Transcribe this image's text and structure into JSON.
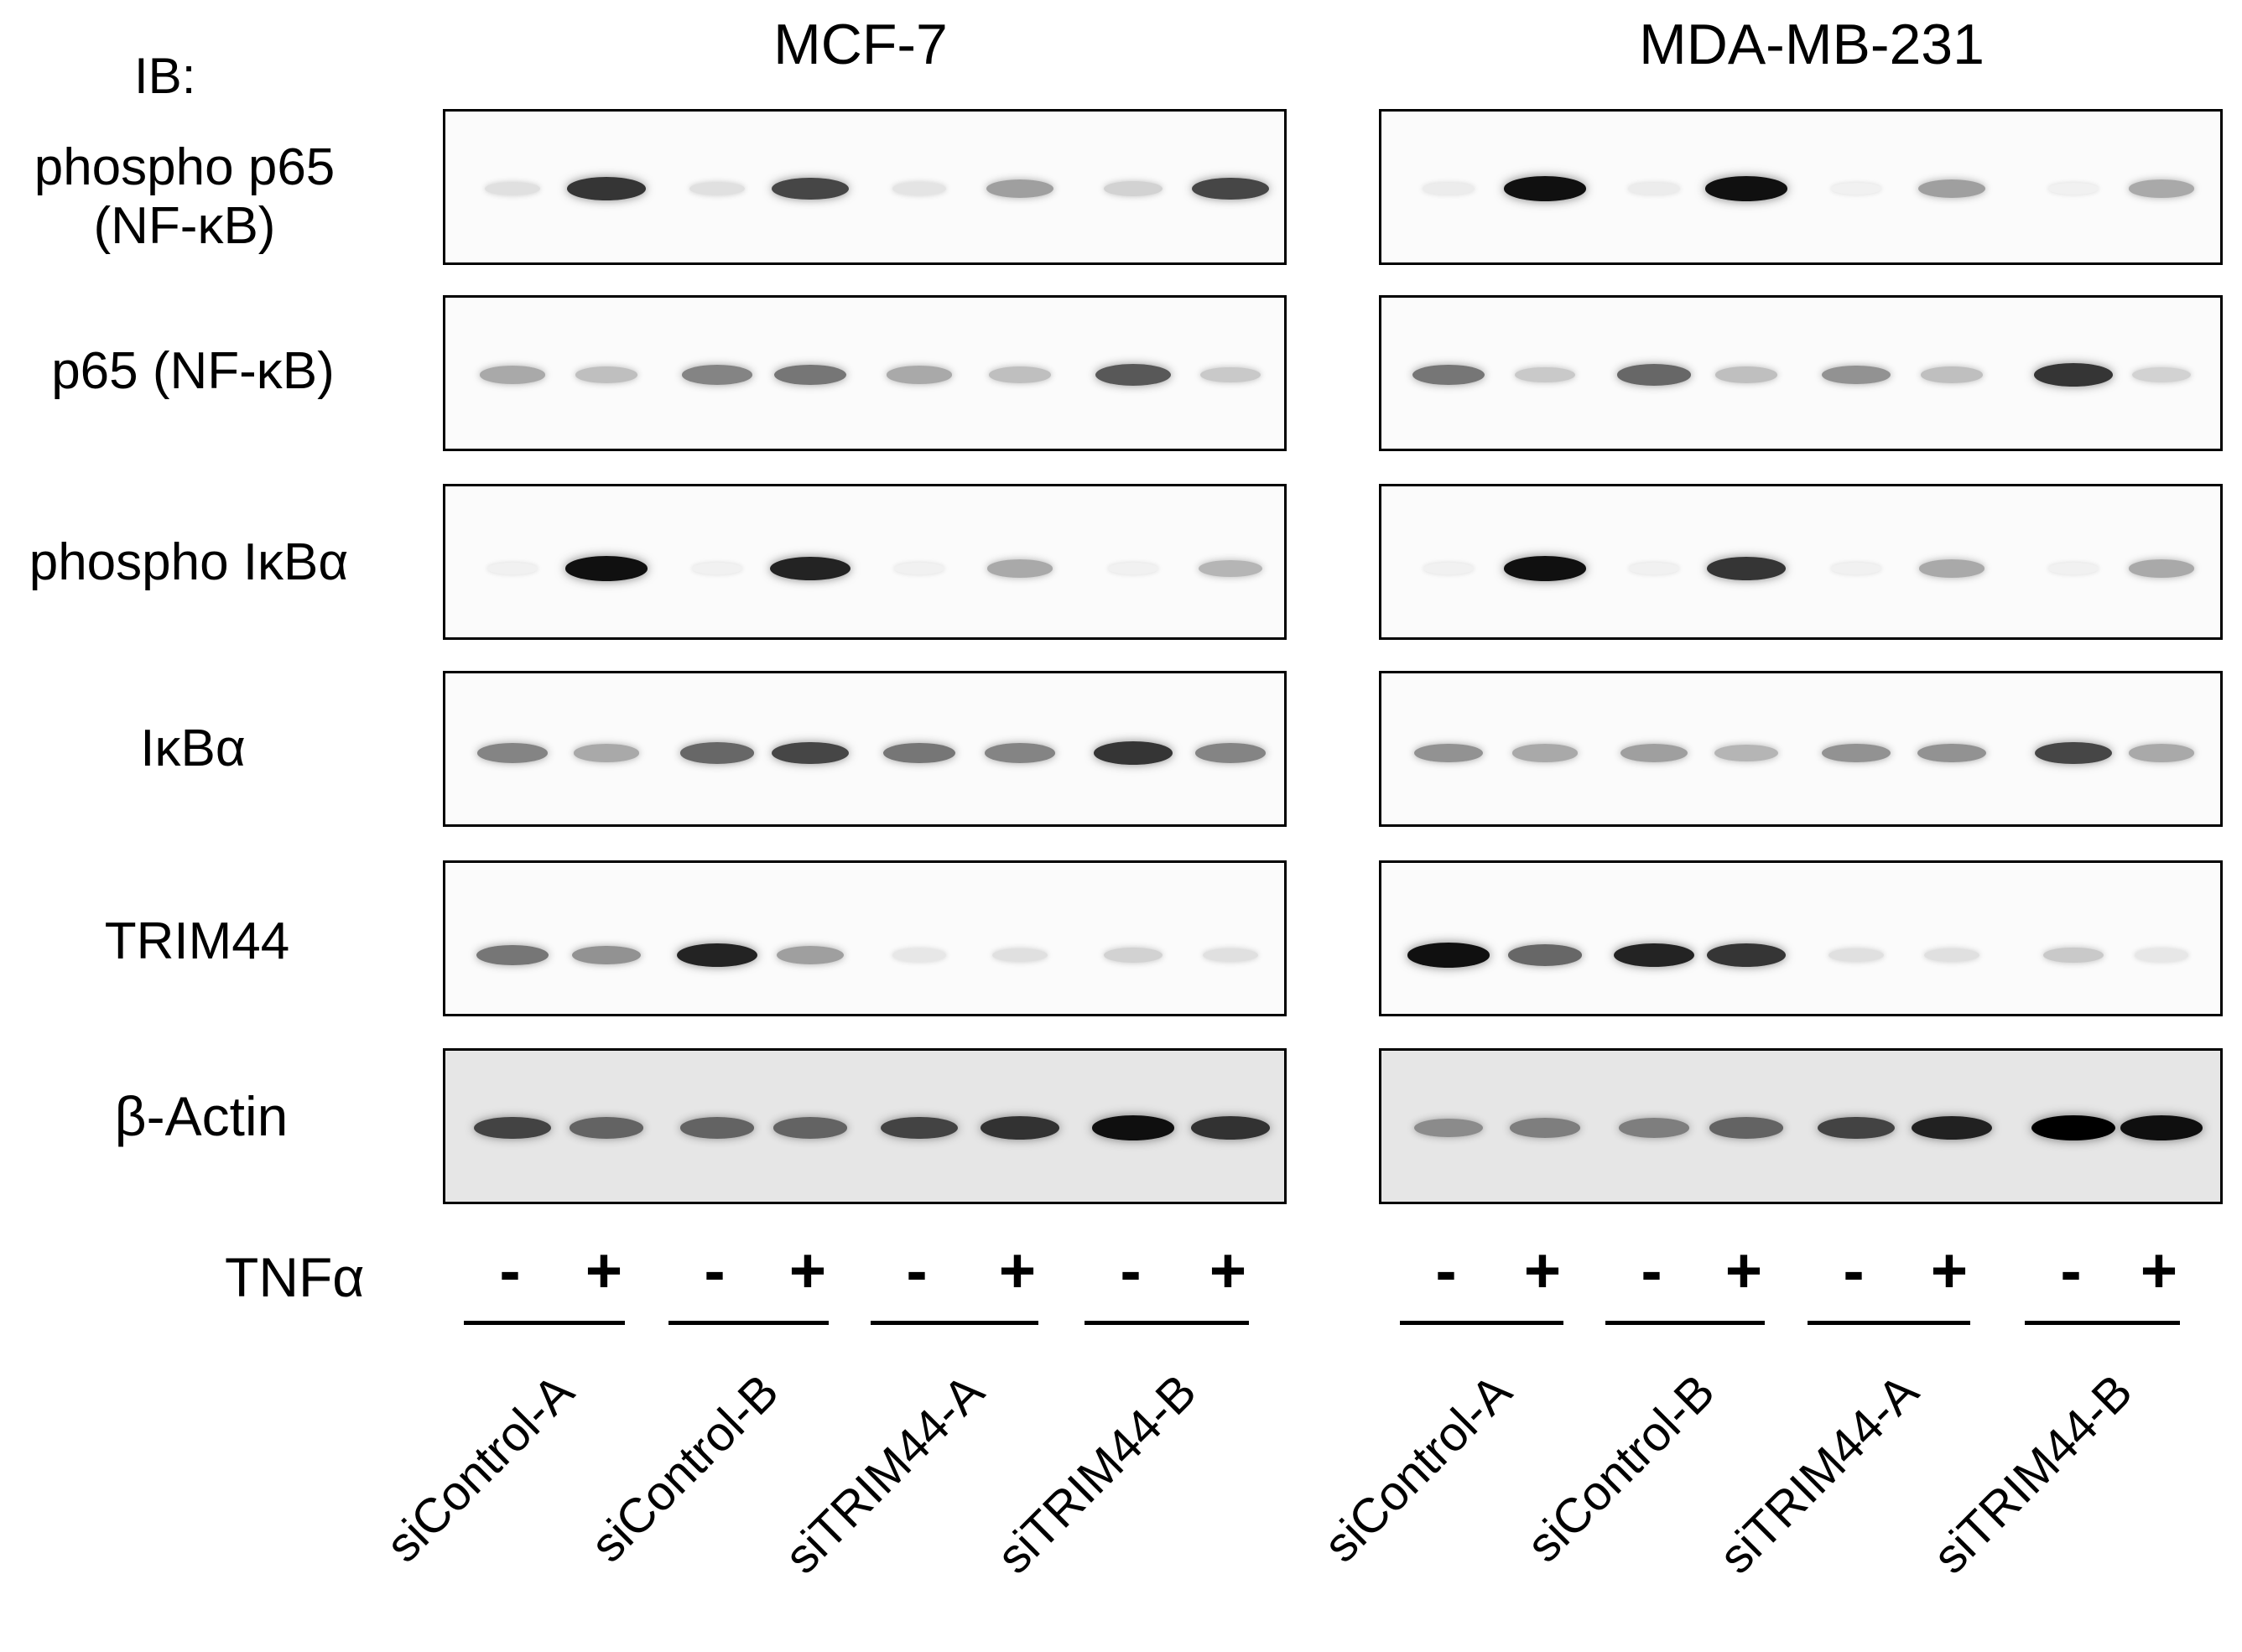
{
  "probe_label": "IB:",
  "cell_lines": [
    "MCF-7",
    "MDA-MB-231"
  ],
  "rows": [
    {
      "label_lines": [
        "phospho p65",
        "(NF-κB)"
      ]
    },
    {
      "label_lines": [
        "p65 (NF-κB)"
      ]
    },
    {
      "label_lines": [
        "phospho IκBα"
      ]
    },
    {
      "label_lines": [
        "IκBα"
      ]
    },
    {
      "label_lines": [
        "TRIM44"
      ]
    },
    {
      "label_lines": [
        "β-Actin"
      ]
    }
  ],
  "treatment_label": "TNFα",
  "treatment_signs": [
    "-",
    "+",
    "-",
    "+",
    "-",
    "+",
    "-",
    "+"
  ],
  "groups": [
    "siControl-A",
    "siControl-B",
    "siTRIM44-A",
    "siTRIM44-B"
  ],
  "band_intensity": {
    "MCF-7": [
      [
        0.15,
        0.85,
        0.15,
        0.8,
        0.12,
        0.5,
        0.25,
        0.8
      ],
      [
        0.45,
        0.35,
        0.6,
        0.65,
        0.45,
        0.35,
        0.75,
        0.3
      ],
      [
        0.0,
        0.95,
        0.0,
        0.9,
        0.0,
        0.45,
        0.0,
        0.4
      ],
      [
        0.6,
        0.45,
        0.7,
        0.8,
        0.65,
        0.6,
        0.85,
        0.6
      ],
      [
        0.65,
        0.55,
        0.9,
        0.5,
        0.1,
        0.15,
        0.25,
        0.15
      ],
      [
        0.8,
        0.7,
        0.7,
        0.7,
        0.8,
        0.85,
        0.95,
        0.85
      ]
    ],
    "MDA-MB-231": [
      [
        0.05,
        0.95,
        0.05,
        0.95,
        0.0,
        0.5,
        0.0,
        0.45
      ],
      [
        0.65,
        0.3,
        0.7,
        0.35,
        0.55,
        0.35,
        0.85,
        0.25
      ],
      [
        0.0,
        0.95,
        0.0,
        0.85,
        0.0,
        0.45,
        0.0,
        0.45
      ],
      [
        0.55,
        0.45,
        0.5,
        0.4,
        0.55,
        0.55,
        0.8,
        0.45
      ],
      [
        0.95,
        0.7,
        0.9,
        0.85,
        0.15,
        0.15,
        0.3,
        0.1
      ],
      [
        0.55,
        0.6,
        0.6,
        0.7,
        0.8,
        0.9,
        1.0,
        0.95
      ]
    ]
  },
  "panel_background": [
    "white",
    "white",
    "white",
    "white",
    "white",
    "gray"
  ]
}
